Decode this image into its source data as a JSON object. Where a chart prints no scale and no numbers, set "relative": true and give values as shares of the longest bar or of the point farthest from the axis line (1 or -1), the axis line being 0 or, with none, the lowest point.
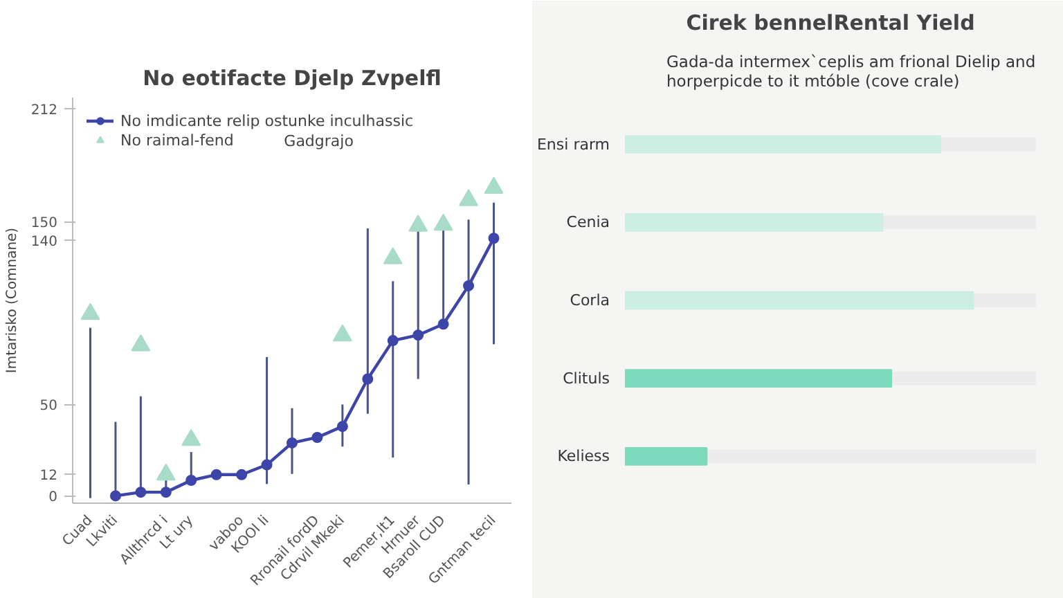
{
  "chart_data": [
    {
      "type": "line",
      "title": "No eotifacte Djelp Zvpelfl",
      "ylabel": "Imtarisko (Comnane)",
      "legend": "top left",
      "marker": "circle",
      "annotations": [
        "Gadgrajo"
      ],
      "categories": [
        "Cuad",
        "Lkviti",
        null,
        "Allthrcd i",
        "Lt ury",
        null,
        "vaboo",
        "KOOl li",
        null,
        "Rronail fordD",
        "Cdrvil Mkeki",
        null,
        "Pemer,lt1",
        "Hrnuer",
        "Bsaroll CUD",
        null,
        "Gntman tecil"
      ],
      "ylim": [
        -4,
        218
      ],
      "yticks": [
        0,
        12,
        50,
        140,
        150,
        212
      ],
      "series": [
        {
          "name": "No imdicante relip ostunke inculhassic",
          "type": "line",
          "color": "#3d45a8",
          "values": [
            null,
            0,
            2,
            2,
            8.5,
            11.6,
            11.6,
            17,
            29,
            32,
            38,
            64,
            85,
            88,
            94,
            115,
            141
          ],
          "errors": [
            null,
            [
              0,
              40.5
            ],
            [
              2,
              54.5
            ],
            [
              2,
              9.6
            ],
            [
              8.5,
              24
            ],
            null,
            null,
            [
              6.5,
              76
            ],
            [
              12,
              48
            ],
            null,
            [
              27,
              50
            ],
            [
              45,
              146.4
            ],
            [
              21,
              117.5
            ],
            [
              64,
              146.7
            ],
            [
              94,
              146.7
            ],
            [
              6.2,
              151.2
            ],
            [
              83,
              160.5
            ]
          ]
        },
        {
          "name": "No raimal-fend",
          "type": "scatter",
          "marker": "triangle",
          "color": "#a8dcc8",
          "values": [
            99.5,
            null,
            82.4,
            11.6,
            30.6,
            null,
            null,
            null,
            null,
            null,
            87.8,
            null,
            130,
            147.8,
            148.4,
            161.8,
            168.6
          ],
          "errors": [
            [
              -1.2,
              92
            ],
            null,
            null,
            null,
            null,
            null,
            null,
            null,
            null,
            null,
            null,
            null,
            null,
            null,
            null,
            null,
            null
          ]
        }
      ]
    },
    {
      "type": "bar",
      "orientation": "horizontal",
      "relative": true,
      "title": "Cirek bennelRental Yield",
      "subtitle": "Gada-da intermex`ceplis am frional Dielip and horperpicde to it mtóble (cove crale)",
      "categories": [
        "Ensi rarm",
        "Cenia",
        "Corla",
        "Clituls",
        "Keliess"
      ],
      "values": [
        0.906,
        0.74,
        1,
        0.765,
        0.235
      ],
      "colors": [
        "#cdeee3",
        "#cdeee3",
        "#cdeee3",
        "#7dd9bb",
        "#7dd9bb"
      ]
    }
  ]
}
